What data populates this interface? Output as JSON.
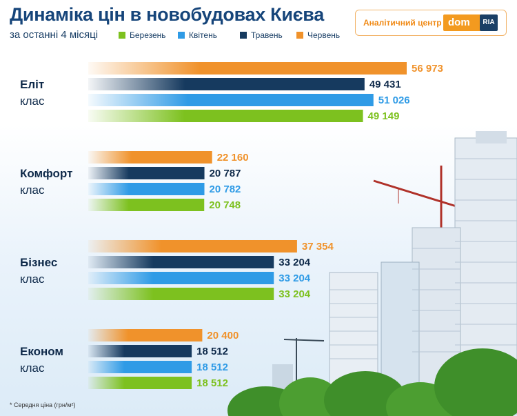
{
  "header": {
    "title": "Динаміка цін в новобудовах Києва",
    "subtitle": "за останні 4 місяці"
  },
  "brand": {
    "center_label": "Аналітичний центр",
    "logo_dom": "dom",
    "logo_ria": "RIA"
  },
  "footnote": "* Середня ціна (грн/м²)",
  "chart_data": {
    "type": "bar",
    "orientation": "horizontal",
    "title": "Динаміка цін в новобудовах Києва",
    "subtitle": "за останні 4 місяці",
    "unit": "грн/м²",
    "legend_position": "top",
    "grid": false,
    "xlim": [
      0,
      60000
    ],
    "categories": [
      {
        "name": "Еліт",
        "sub": "клас"
      },
      {
        "name": "Комфорт",
        "sub": "клас"
      },
      {
        "name": "Бізнес",
        "sub": "клас"
      },
      {
        "name": "Економ",
        "sub": "клас"
      }
    ],
    "series_order_top_to_bottom": [
      "Червень",
      "Травень",
      "Квітень",
      "Березень"
    ],
    "series": [
      {
        "name": "Березень",
        "color": "#7dc11f",
        "values": [
          49149,
          20748,
          33204,
          18512
        ],
        "labels": [
          "49 149",
          "20 748",
          "33 204",
          "18 512"
        ]
      },
      {
        "name": "Квітень",
        "color": "#2f9be6",
        "values": [
          51026,
          20782,
          33204,
          18512
        ],
        "labels": [
          "51 026",
          "20 782",
          "33 204",
          "18 512"
        ]
      },
      {
        "name": "Травень",
        "color": "#163a5f",
        "values": [
          49431,
          20787,
          33204,
          18512
        ],
        "labels": [
          "49 431",
          "20 787",
          "33 204",
          "18 512"
        ]
      },
      {
        "name": "Червень",
        "color": "#f0922b",
        "values": [
          56973,
          22160,
          37354,
          20400
        ],
        "labels": [
          "56 973",
          "22 160",
          "37 354",
          "20 400"
        ]
      }
    ]
  }
}
